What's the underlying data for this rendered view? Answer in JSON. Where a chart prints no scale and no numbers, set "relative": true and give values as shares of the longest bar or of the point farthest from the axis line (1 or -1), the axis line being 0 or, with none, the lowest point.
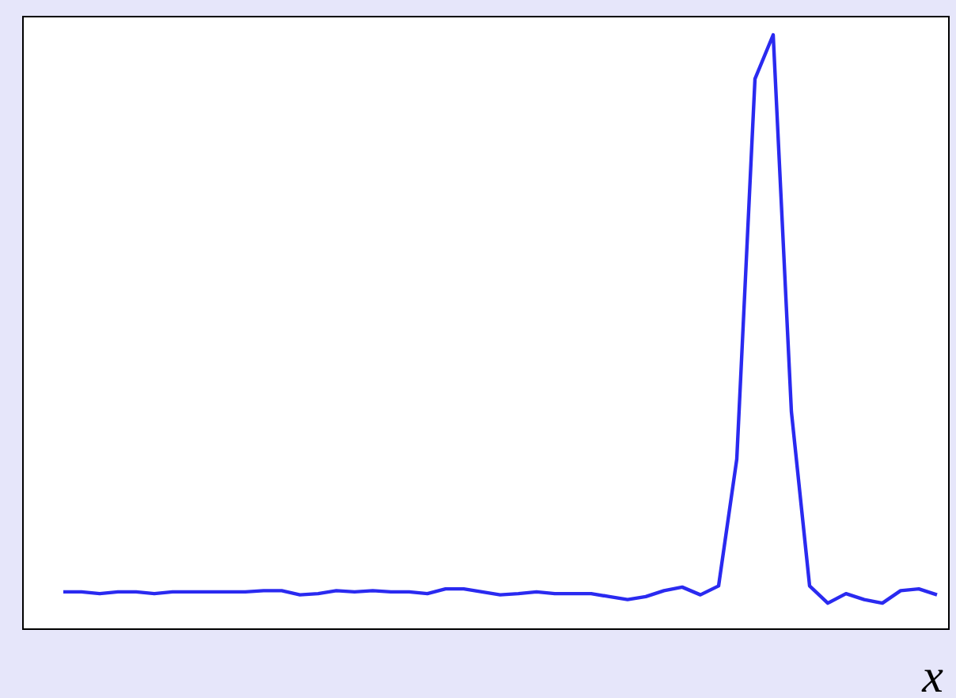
{
  "chart_data": {
    "type": "line",
    "relative": true,
    "xlabel": "x",
    "grid": false,
    "legend": false,
    "marker": "none",
    "line_style": "solid",
    "categories": [
      null,
      null,
      null,
      null,
      null,
      null,
      null,
      null,
      null,
      null,
      null,
      null,
      null,
      null,
      null,
      null,
      null,
      null,
      null,
      null,
      null,
      null,
      null,
      null,
      null,
      null,
      null,
      null,
      null,
      null,
      null,
      null,
      null,
      null,
      null,
      null,
      null,
      null,
      null,
      null,
      null,
      null,
      null,
      null,
      null,
      null,
      null,
      null,
      null
    ],
    "series": [
      {
        "color": "#2a2af0",
        "values": [
          0.064,
          0.064,
          0.061,
          0.064,
          0.064,
          0.061,
          0.064,
          0.064,
          0.064,
          0.064,
          0.064,
          0.066,
          0.066,
          0.059,
          0.061,
          0.066,
          0.064,
          0.066,
          0.064,
          0.064,
          0.061,
          0.069,
          0.069,
          0.064,
          0.059,
          0.061,
          0.064,
          0.061,
          0.061,
          0.061,
          0.056,
          0.051,
          0.056,
          0.066,
          0.072,
          0.059,
          0.074,
          0.287,
          0.926,
          1,
          0.367,
          0.074,
          0.045,
          0.061,
          0.051,
          0.045,
          0.066,
          0.069,
          0.059
        ]
      }
    ]
  }
}
